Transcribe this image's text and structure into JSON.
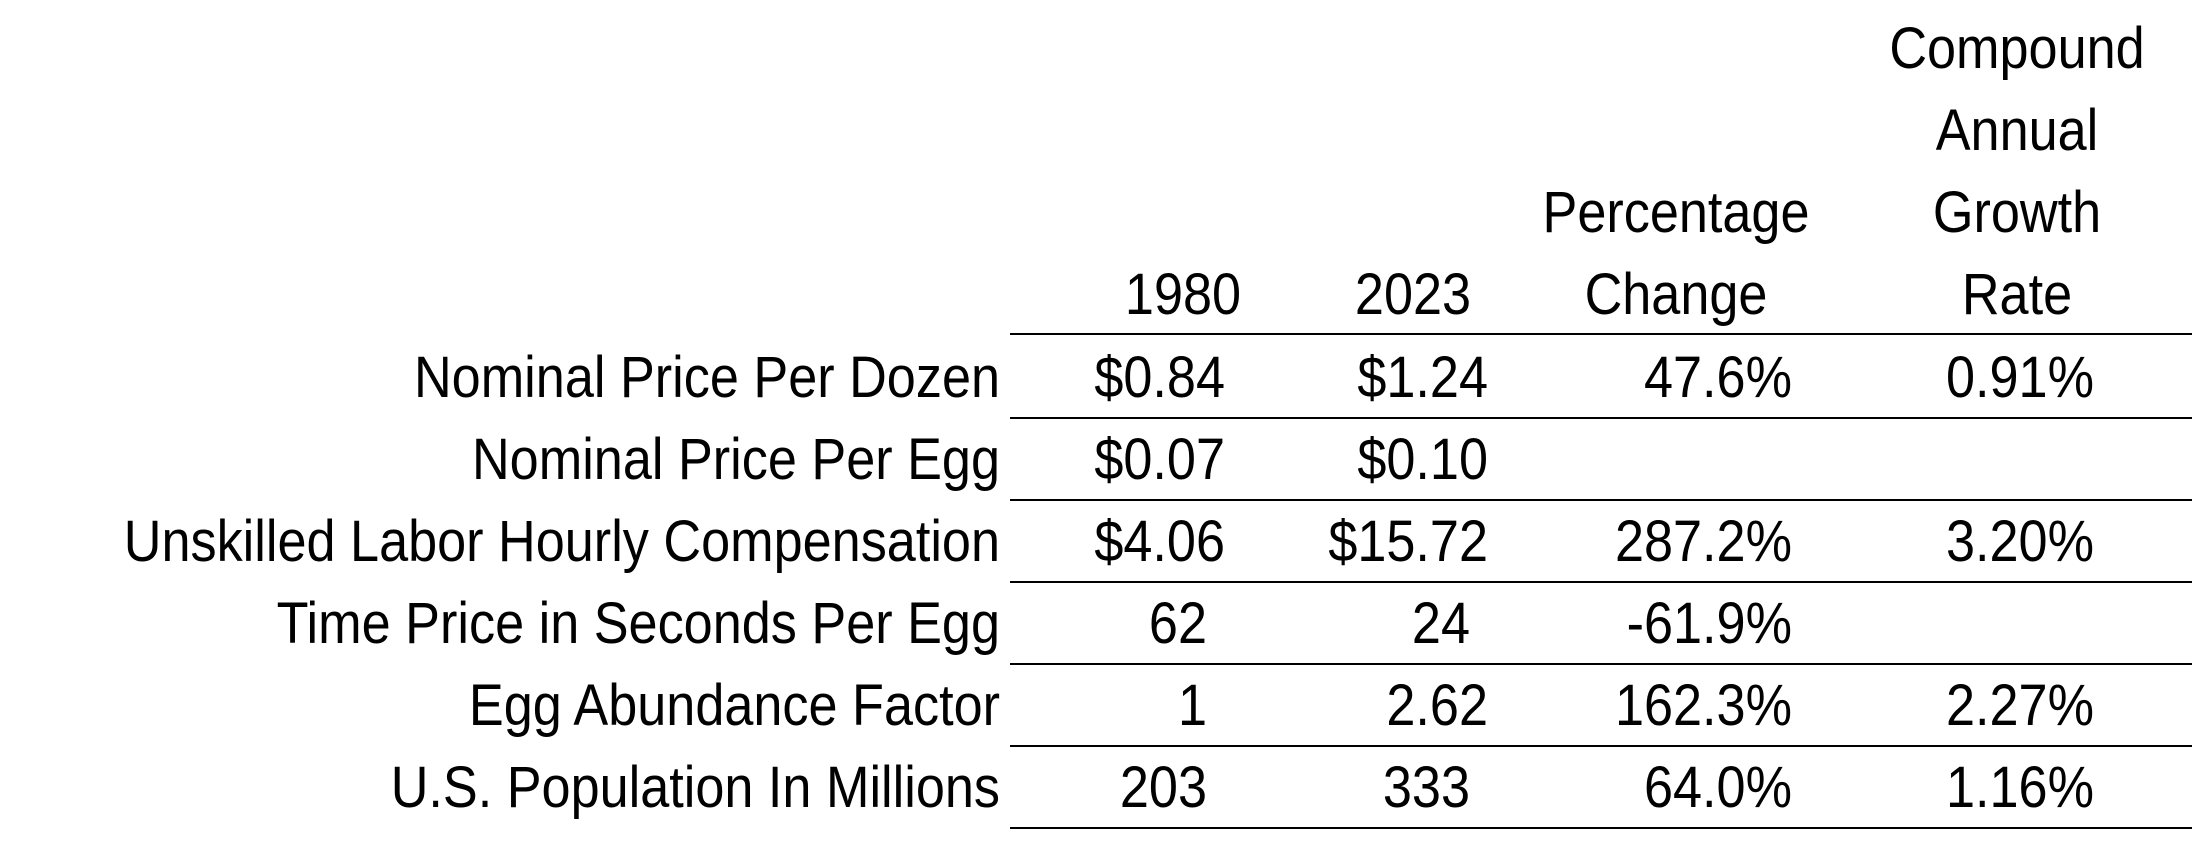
{
  "chart_data": {
    "type": "table",
    "columns": [
      "1980",
      "2023",
      "Percentage Change",
      "Compound Annual Growth Rate"
    ],
    "header_lines": [
      [
        "",
        "",
        "",
        "Compound"
      ],
      [
        "",
        "",
        "",
        "Annual"
      ],
      [
        "",
        "",
        "Percentage",
        "Growth"
      ],
      [
        "1980",
        "2023",
        "Change",
        "Rate"
      ]
    ],
    "rows": [
      {
        "label": "Nominal Price Per Dozen",
        "values": [
          "$0.84",
          "$1.24",
          "47.6%",
          "0.91%"
        ]
      },
      {
        "label": "Nominal Price Per Egg",
        "values": [
          "$0.07",
          "$0.10",
          "",
          ""
        ]
      },
      {
        "label": "Unskilled Labor Hourly Compensation",
        "values": [
          "$4.06",
          "$15.72",
          "287.2%",
          "3.20%"
        ]
      },
      {
        "label": "Time Price in Seconds Per Egg",
        "values": [
          "62",
          "24",
          "-61.9%",
          ""
        ]
      },
      {
        "label": "Egg Abundance Factor",
        "values": [
          "1",
          "2.62",
          "162.3%",
          "2.27%"
        ]
      },
      {
        "label": "U.S. Population In Millions",
        "values": [
          "203",
          "333",
          "64.0%",
          "1.16%"
        ]
      }
    ]
  }
}
